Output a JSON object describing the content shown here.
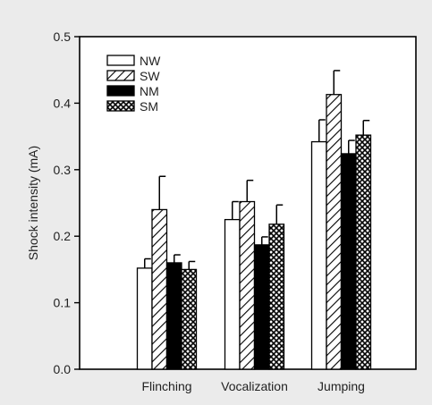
{
  "chart_data": {
    "type": "bar",
    "title": "",
    "xlabel": "",
    "ylabel": "Shock intensity (mA)",
    "ylim": [
      0,
      0.5
    ],
    "yticks": [
      "0.0",
      "0.1",
      "0.2",
      "0.3",
      "0.4",
      "0.5"
    ],
    "categories": [
      "Flinching",
      "Vocalization",
      "Jumping"
    ],
    "series": [
      {
        "name": "NW",
        "values": [
          0.152,
          0.225,
          0.342
        ],
        "errors": [
          0.014,
          0.027,
          0.033
        ],
        "fill": "white"
      },
      {
        "name": "SW",
        "values": [
          0.24,
          0.252,
          0.413
        ],
        "errors": [
          0.05,
          0.032,
          0.036
        ],
        "fill": "diagonal"
      },
      {
        "name": "NM",
        "values": [
          0.16,
          0.187,
          0.324
        ],
        "errors": [
          0.012,
          0.012,
          0.02
        ],
        "fill": "black"
      },
      {
        "name": "SM",
        "values": [
          0.15,
          0.218,
          0.352
        ],
        "errors": [
          0.012,
          0.029,
          0.022
        ],
        "fill": "crosshatch"
      }
    ],
    "legend_position": "top-left",
    "grid": false,
    "colors": {
      "background": "#ebebeb",
      "plot_background": "#ffffff",
      "ink": "#000000"
    }
  }
}
